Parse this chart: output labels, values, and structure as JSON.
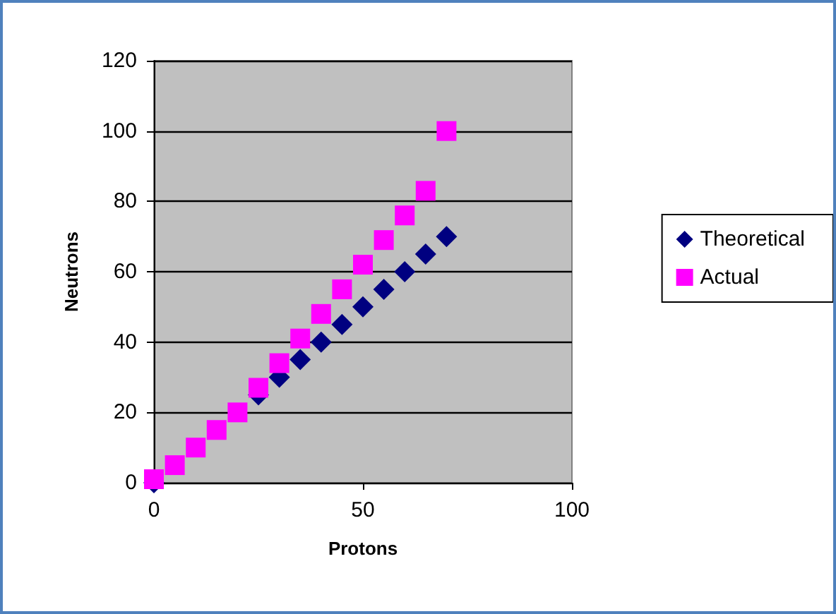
{
  "chart_data": {
    "type": "scatter",
    "xlabel": "Protons",
    "ylabel": "Neutrons",
    "x": [
      0,
      5,
      10,
      15,
      20,
      25,
      30,
      35,
      40,
      45,
      50,
      55,
      60,
      65,
      70
    ],
    "series": [
      {
        "name": "Theoretical",
        "color": "#000080",
        "marker": "diamond",
        "values": [
          0,
          null,
          null,
          null,
          null,
          25,
          30,
          35,
          40,
          45,
          50,
          55,
          60,
          65,
          70
        ]
      },
      {
        "name": "Actual",
        "color": "#ff00ff",
        "marker": "square",
        "values": [
          1,
          5,
          10,
          15,
          20,
          27,
          34,
          41,
          48,
          55,
          62,
          69,
          76,
          83,
          100
        ]
      }
    ],
    "xlim": [
      0,
      100
    ],
    "xticks": [
      0,
      50,
      100
    ],
    "ylim": [
      0,
      120
    ],
    "yticks": [
      0,
      20,
      40,
      60,
      80,
      100,
      120
    ],
    "grid": "y",
    "legend": "right"
  }
}
